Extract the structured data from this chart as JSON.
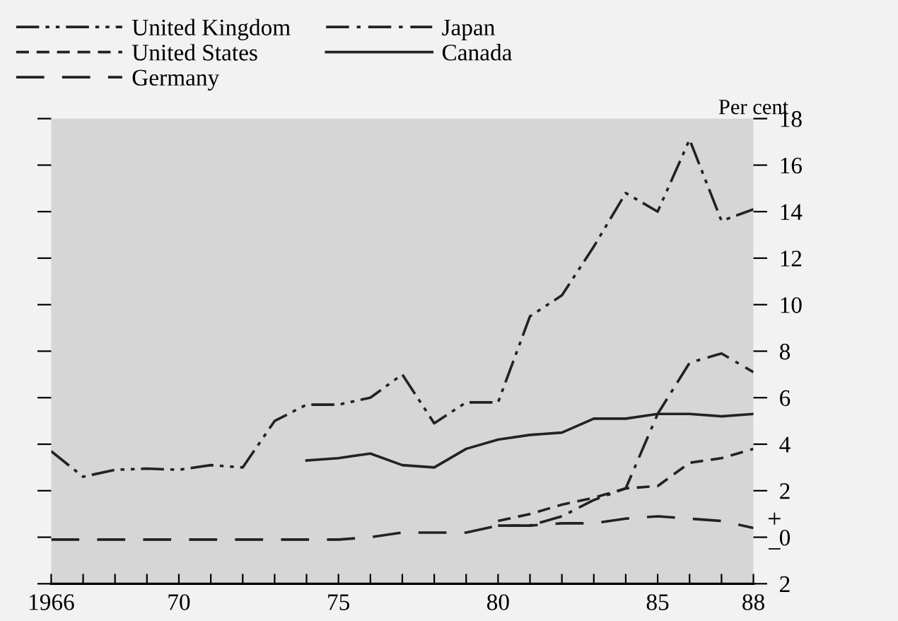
{
  "chart_data": {
    "type": "line",
    "ylabel": "Per cent",
    "legend": "top left",
    "grid": false,
    "xlim": [
      1966,
      1988
    ],
    "xticks": [
      {
        "value": 1966,
        "label": "1966"
      },
      {
        "value": 1967,
        "label": null
      },
      {
        "value": 1968,
        "label": null
      },
      {
        "value": 1969,
        "label": null
      },
      {
        "value": 1970,
        "label": "70"
      },
      {
        "value": 1971,
        "label": null
      },
      {
        "value": 1972,
        "label": null
      },
      {
        "value": 1973,
        "label": null
      },
      {
        "value": 1974,
        "label": null
      },
      {
        "value": 1975,
        "label": "75"
      },
      {
        "value": 1976,
        "label": null
      },
      {
        "value": 1977,
        "label": null
      },
      {
        "value": 1978,
        "label": null
      },
      {
        "value": 1979,
        "label": null
      },
      {
        "value": 1980,
        "label": "80"
      },
      {
        "value": 1981,
        "label": null
      },
      {
        "value": 1982,
        "label": null
      },
      {
        "value": 1983,
        "label": null
      },
      {
        "value": 1984,
        "label": null
      },
      {
        "value": 1985,
        "label": "85"
      },
      {
        "value": 1986,
        "label": null
      },
      {
        "value": 1987,
        "label": null
      },
      {
        "value": 1988,
        "label": "88"
      }
    ],
    "ylim": [
      -2,
      18
    ],
    "yticks": [
      {
        "value": -2,
        "label": "2"
      },
      0,
      2,
      4,
      6,
      8,
      10,
      12,
      14,
      16,
      18
    ],
    "annotations": [
      "+",
      "−"
    ],
    "series": [
      {
        "name": "United Kingdom",
        "color": "#222222",
        "line_style": "dashdotdot",
        "x": [
          1966,
          1967,
          1968,
          1969,
          1970,
          1971,
          1972,
          1973,
          1974,
          1975,
          1976,
          1977,
          1978,
          1979,
          1980,
          1981,
          1982,
          1983,
          1984,
          1985,
          1986,
          1987,
          1988
        ],
        "values": [
          3.7,
          2.6,
          2.9,
          2.95,
          2.9,
          3.1,
          3.0,
          5.0,
          5.7,
          5.7,
          6.0,
          7.0,
          4.9,
          5.8,
          5.8,
          9.5,
          10.4,
          12.5,
          14.8,
          14.0,
          17.1,
          13.6,
          14.1
        ]
      },
      {
        "name": "United States",
        "color": "#222222",
        "line_style": "dashed",
        "x": [
          1980,
          1981,
          1982,
          1983,
          1984,
          1985,
          1986,
          1987,
          1988
        ],
        "values": [
          0.7,
          1.0,
          1.4,
          1.7,
          2.1,
          2.2,
          3.2,
          3.4,
          3.8
        ]
      },
      {
        "name": "Germany",
        "color": "#222222",
        "line_style": "longdash",
        "x": [
          1966,
          1967,
          1968,
          1969,
          1970,
          1971,
          1972,
          1973,
          1974,
          1975,
          1976,
          1977,
          1978,
          1979,
          1980,
          1981,
          1982,
          1983,
          1984,
          1985,
          1986,
          1987,
          1988
        ],
        "values": [
          -0.1,
          -0.1,
          -0.1,
          -0.1,
          -0.1,
          -0.1,
          -0.1,
          -0.1,
          -0.1,
          -0.1,
          0.0,
          0.2,
          0.2,
          0.2,
          0.5,
          0.5,
          0.6,
          0.6,
          0.8,
          0.9,
          0.8,
          0.7,
          0.4
        ]
      },
      {
        "name": "Japan",
        "color": "#222222",
        "line_style": "dashdot",
        "x": [
          1980,
          1981,
          1982,
          1983,
          1984,
          1985,
          1986,
          1987,
          1988
        ],
        "values": [
          0.5,
          0.5,
          0.9,
          1.6,
          2.1,
          5.3,
          7.5,
          7.9,
          7.1
        ]
      },
      {
        "name": "Canada",
        "color": "#222222",
        "line_style": "solid",
        "x": [
          1974,
          1975,
          1976,
          1977,
          1978,
          1979,
          1980,
          1981,
          1982,
          1983,
          1984,
          1985,
          1986,
          1987,
          1988
        ],
        "values": [
          3.3,
          3.4,
          3.6,
          3.1,
          3.0,
          3.8,
          4.2,
          4.4,
          4.5,
          5.1,
          5.1,
          5.3,
          5.3,
          5.2,
          5.3
        ]
      }
    ]
  }
}
